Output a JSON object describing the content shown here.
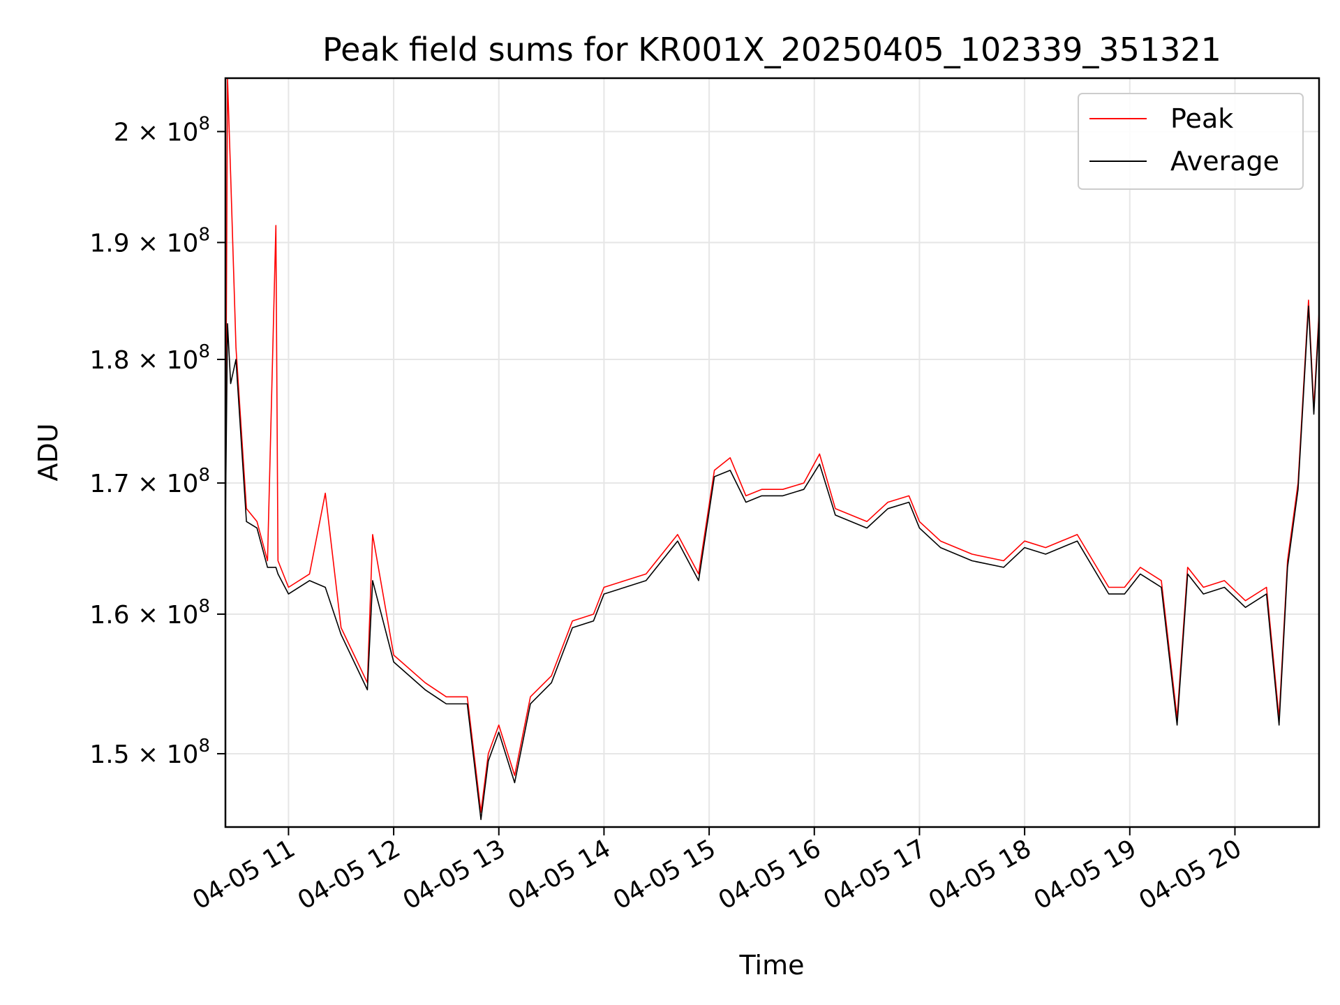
{
  "chart_data": {
    "type": "line",
    "title": "Peak field sums for KR001X_20250405_102339_351321",
    "xlabel": "Time",
    "ylabel": "ADU",
    "y_scale": "log",
    "xlim": [
      10.4,
      20.8
    ],
    "ylim": [
      145000000,
      205000000
    ],
    "grid": true,
    "legend_position": "top-right",
    "x_ticks": [
      {
        "value": 11,
        "label": "04-05 11"
      },
      {
        "value": 12,
        "label": "04-05 12"
      },
      {
        "value": 13,
        "label": "04-05 13"
      },
      {
        "value": 14,
        "label": "04-05 14"
      },
      {
        "value": 15,
        "label": "04-05 15"
      },
      {
        "value": 16,
        "label": "04-05 16"
      },
      {
        "value": 17,
        "label": "04-05 17"
      },
      {
        "value": 18,
        "label": "04-05 18"
      },
      {
        "value": 19,
        "label": "04-05 19"
      },
      {
        "value": 20,
        "label": "04-05 20"
      }
    ],
    "y_ticks": [
      {
        "value": 150000000,
        "mantissa": "1.5",
        "exponent": "8"
      },
      {
        "value": 160000000,
        "mantissa": "1.6",
        "exponent": "8"
      },
      {
        "value": 170000000,
        "mantissa": "1.7",
        "exponent": "8"
      },
      {
        "value": 180000000,
        "mantissa": "1.8",
        "exponent": "8"
      },
      {
        "value": 190000000,
        "mantissa": "1.9",
        "exponent": "8"
      },
      {
        "value": 200000000,
        "mantissa": "2",
        "exponent": "8"
      }
    ],
    "series": [
      {
        "name": "Peak",
        "color": "#ff0000",
        "x": [
          10.4,
          10.42,
          10.45,
          10.5,
          10.6,
          10.7,
          10.8,
          10.88,
          10.9,
          11.0,
          11.2,
          11.35,
          11.5,
          11.75,
          11.8,
          12.0,
          12.3,
          12.5,
          12.7,
          12.83,
          12.9,
          13.0,
          13.15,
          13.3,
          13.5,
          13.7,
          13.9,
          14.0,
          14.2,
          14.4,
          14.7,
          14.9,
          15.05,
          15.2,
          15.35,
          15.5,
          15.7,
          15.9,
          16.05,
          16.2,
          16.5,
          16.7,
          16.9,
          17.0,
          17.2,
          17.5,
          17.8,
          18.0,
          18.2,
          18.5,
          18.8,
          18.95,
          19.1,
          19.3,
          19.45,
          19.55,
          19.7,
          19.9,
          20.1,
          20.3,
          20.42,
          20.5,
          20.6,
          20.7,
          20.75,
          20.8
        ],
        "y": [
          168000000,
          205000000,
          196000000,
          181000000,
          168000000,
          167000000,
          164000000,
          191500000,
          164000000,
          162000000,
          163000000,
          169200000,
          159000000,
          155000000,
          166000000,
          157000000,
          155000000,
          154000000,
          154000000,
          146000000,
          150000000,
          152000000,
          148500000,
          154000000,
          155500000,
          159500000,
          160000000,
          162000000,
          162500000,
          163000000,
          166000000,
          163000000,
          171000000,
          172000000,
          169000000,
          169500000,
          169500000,
          170000000,
          172300000,
          168000000,
          167000000,
          168500000,
          169000000,
          167000000,
          165500000,
          164500000,
          164000000,
          165500000,
          165000000,
          166000000,
          162000000,
          162000000,
          163500000,
          162500000,
          152500000,
          163500000,
          162000000,
          162500000,
          161000000,
          162000000,
          152500000,
          164000000,
          170000000,
          185000000,
          176000000,
          184000000
        ]
      },
      {
        "name": "Average",
        "color": "#000000",
        "x": [
          10.4,
          10.42,
          10.45,
          10.5,
          10.6,
          10.7,
          10.8,
          10.88,
          10.9,
          11.0,
          11.2,
          11.35,
          11.5,
          11.75,
          11.8,
          12.0,
          12.3,
          12.5,
          12.7,
          12.83,
          12.9,
          13.0,
          13.15,
          13.3,
          13.5,
          13.7,
          13.9,
          14.0,
          14.2,
          14.4,
          14.7,
          14.9,
          15.05,
          15.2,
          15.35,
          15.5,
          15.7,
          15.9,
          16.05,
          16.2,
          16.5,
          16.7,
          16.9,
          17.0,
          17.2,
          17.5,
          17.8,
          18.0,
          18.2,
          18.5,
          18.8,
          18.95,
          19.1,
          19.3,
          19.45,
          19.55,
          19.7,
          19.9,
          20.1,
          20.3,
          20.42,
          20.5,
          20.6,
          20.7,
          20.75,
          20.8
        ],
        "y": [
          167000000,
          183000000,
          178000000,
          180000000,
          167000000,
          166500000,
          163500000,
          163500000,
          163000000,
          161500000,
          162500000,
          162000000,
          158500000,
          154500000,
          162500000,
          156500000,
          154500000,
          153500000,
          153500000,
          145500000,
          149500000,
          151500000,
          148000000,
          153500000,
          155000000,
          159000000,
          159500000,
          161500000,
          162000000,
          162500000,
          165500000,
          162500000,
          170500000,
          171000000,
          168500000,
          169000000,
          169000000,
          169500000,
          171500000,
          167500000,
          166500000,
          168000000,
          168500000,
          166500000,
          165000000,
          164000000,
          163500000,
          165000000,
          164500000,
          165500000,
          161500000,
          161500000,
          163000000,
          162000000,
          152000000,
          163000000,
          161500000,
          162000000,
          160500000,
          161500000,
          152000000,
          163500000,
          169500000,
          184500000,
          175500000,
          183500000
        ]
      }
    ]
  }
}
